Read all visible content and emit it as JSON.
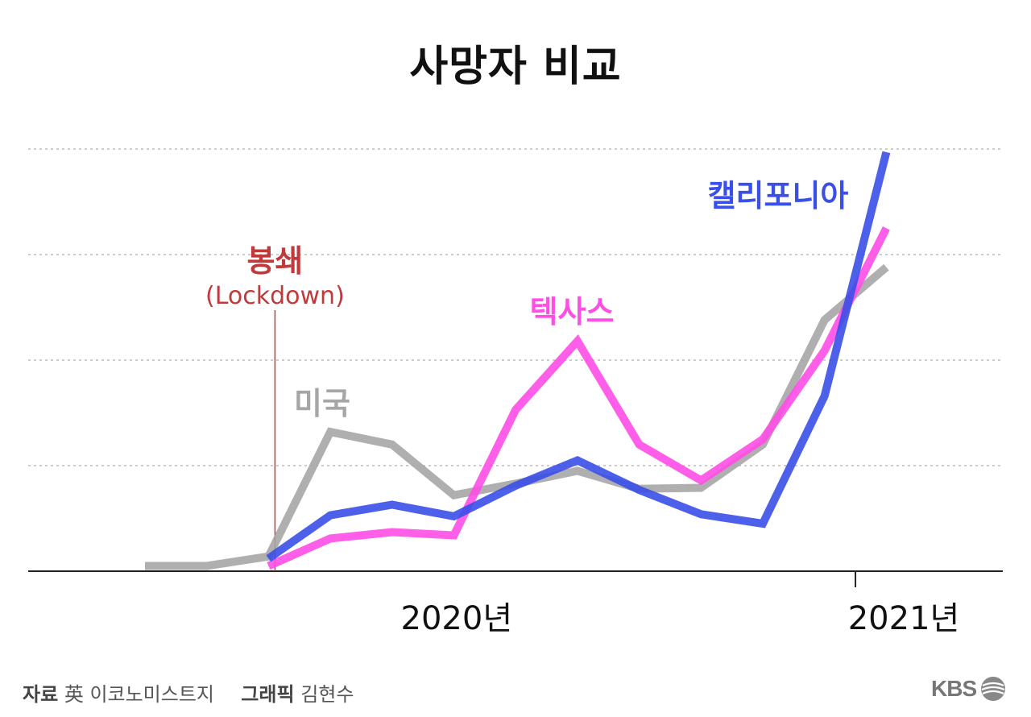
{
  "chart_data": {
    "type": "line",
    "title": "사망자 비교",
    "xlabel": "",
    "ylabel": "",
    "x_ticks": [
      {
        "index": 5.5,
        "label": "2020년"
      },
      {
        "index": 11.5,
        "label": "2021년"
      }
    ],
    "grid": true,
    "series": [
      {
        "name": "미국",
        "color": "#a6a6a6",
        "start_index": 0,
        "values": [
          0.05,
          0.05,
          0.14,
          1.32,
          1.2,
          0.72,
          0.83,
          0.95,
          0.78,
          0.79,
          1.2,
          2.38,
          2.88
        ]
      },
      {
        "name": "텍사스",
        "color": "#ff4de6",
        "start_index": 2,
        "values": [
          0.05,
          0.31,
          0.37,
          0.34,
          1.53,
          2.18,
          1.2,
          0.86,
          1.25,
          2.09,
          3.25
        ]
      },
      {
        "name": "캘리포니아",
        "color": "#3a4fe8",
        "start_index": 2,
        "values": [
          0.12,
          0.53,
          0.63,
          0.52,
          0.81,
          1.05,
          0.77,
          0.54,
          0.45,
          1.66,
          3.97
        ]
      }
    ],
    "annotations": [
      {
        "label": "봉쇄",
        "sublabel": "(Lockdown)",
        "at_index": 2,
        "color": "#c0393b"
      }
    ]
  },
  "footer": {
    "source_label": "자료",
    "source_text": "英 이코노미스트지",
    "graphic_label": "그래픽",
    "graphic_text": "김현수"
  },
  "logo": {
    "text": "KBS"
  }
}
